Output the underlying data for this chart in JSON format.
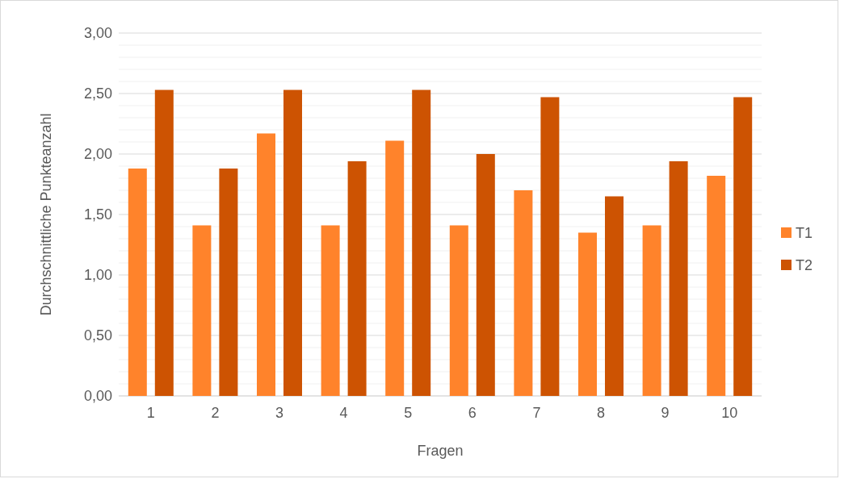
{
  "chart_data": {
    "type": "bar",
    "xlabel": "Fragen",
    "ylabel": "Durchschnittliche Punkteanzahl",
    "categories": [
      "1",
      "2",
      "3",
      "4",
      "5",
      "6",
      "7",
      "8",
      "9",
      "10"
    ],
    "series": [
      {
        "name": "T1",
        "color": "#ff832b",
        "values": [
          1.88,
          1.41,
          2.17,
          1.41,
          2.11,
          1.41,
          1.7,
          1.35,
          1.41,
          1.82
        ]
      },
      {
        "name": "T2",
        "color": "#cd5302",
        "values": [
          2.53,
          1.88,
          2.53,
          1.94,
          2.53,
          2.0,
          2.47,
          1.65,
          1.94,
          2.47
        ]
      }
    ],
    "ylim": [
      0,
      3
    ],
    "yticks": [
      {
        "value": 0,
        "label": "0,00"
      },
      {
        "value": 0.1,
        "label": null
      },
      {
        "value": 0.2,
        "label": null
      },
      {
        "value": 0.3,
        "label": null
      },
      {
        "value": 0.4,
        "label": null
      },
      {
        "value": 0.5,
        "label": "0,50"
      },
      {
        "value": 0.6,
        "label": null
      },
      {
        "value": 0.7,
        "label": null
      },
      {
        "value": 0.8,
        "label": null
      },
      {
        "value": 0.9,
        "label": null
      },
      {
        "value": 1,
        "label": "1,00"
      },
      {
        "value": 1.1,
        "label": null
      },
      {
        "value": 1.2,
        "label": null
      },
      {
        "value": 1.3,
        "label": null
      },
      {
        "value": 1.4,
        "label": null
      },
      {
        "value": 1.5,
        "label": "1,50"
      },
      {
        "value": 1.6,
        "label": null
      },
      {
        "value": 1.7,
        "label": null
      },
      {
        "value": 1.8,
        "label": null
      },
      {
        "value": 1.9,
        "label": null
      },
      {
        "value": 2,
        "label": "2,00"
      },
      {
        "value": 2.1,
        "label": null
      },
      {
        "value": 2.2,
        "label": null
      },
      {
        "value": 2.3,
        "label": null
      },
      {
        "value": 2.4,
        "label": null
      },
      {
        "value": 2.5,
        "label": "2,50"
      },
      {
        "value": 2.6,
        "label": null
      },
      {
        "value": 2.7,
        "label": null
      },
      {
        "value": 2.8,
        "label": null
      },
      {
        "value": 2.9,
        "label": null
      },
      {
        "value": 3,
        "label": "3,00"
      }
    ],
    "grid": "y",
    "legend": "right"
  }
}
